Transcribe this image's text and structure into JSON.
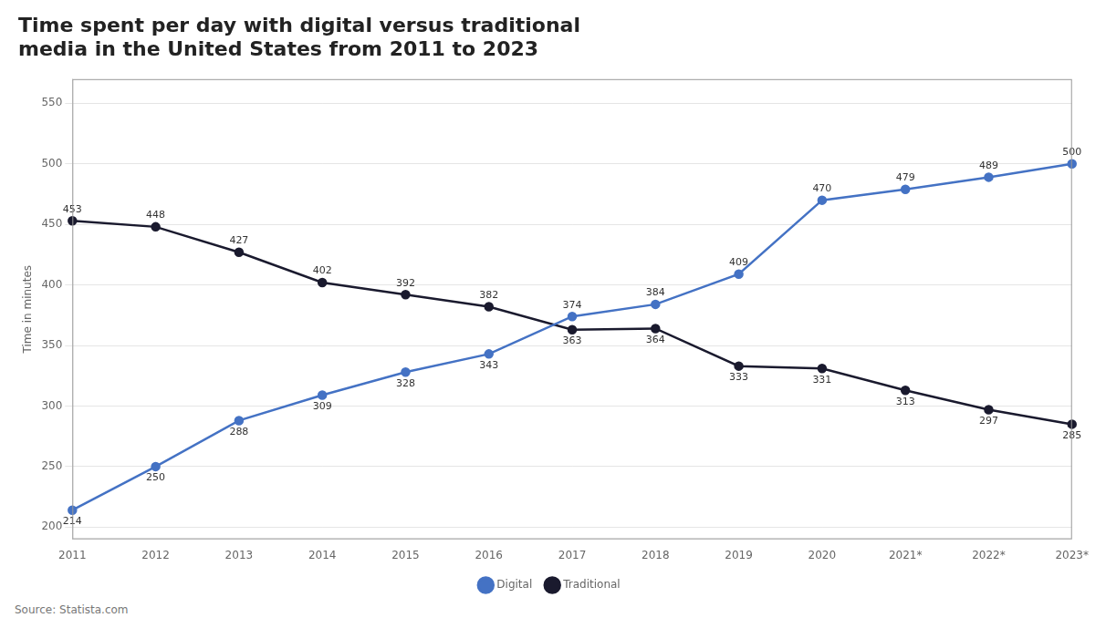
{
  "chart_data": {
    "type": "line",
    "title": [
      "Time spent per day with digital versus traditional",
      "media in the United States from 2011 to 2023"
    ],
    "ylabel": "Time in minutes",
    "source": "Source: Statista.com",
    "categories": [
      "2011",
      "2012",
      "2013",
      "2014",
      "2015",
      "2016",
      "2017",
      "2018",
      "2019",
      "2020",
      "2021*",
      "2022*",
      "2023*"
    ],
    "series": [
      {
        "name": "Digital",
        "color": "#4472C4",
        "marker": "circle",
        "values": [
          214,
          250,
          288,
          309,
          328,
          343,
          374,
          384,
          409,
          470,
          479,
          489,
          500
        ]
      },
      {
        "name": "Traditional",
        "color": "#1a1a2e",
        "marker": "circle",
        "values": [
          453,
          448,
          427,
          402,
          392,
          382,
          363,
          364,
          333,
          331,
          313,
          297,
          285
        ]
      }
    ],
    "ylim": [
      190,
      570
    ],
    "yticks": [
      200,
      250,
      300,
      350,
      400,
      450,
      500,
      550
    ],
    "grid": true,
    "legend": "bottom",
    "data_labels": true
  }
}
